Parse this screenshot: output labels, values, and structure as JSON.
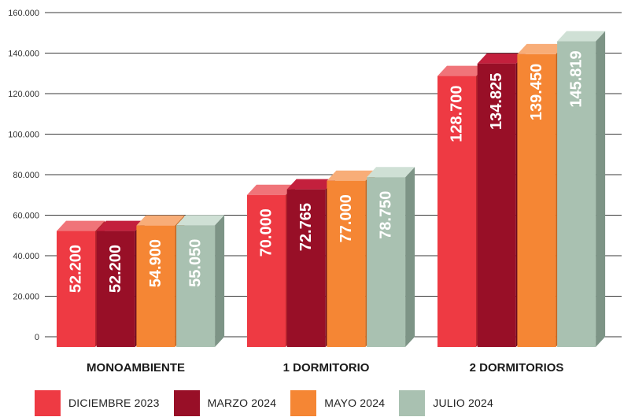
{
  "chart_data": {
    "type": "bar",
    "categories": [
      "MONOAMBIENTE",
      "1 DORMITORIO",
      "2 DORMITORIOS"
    ],
    "series": [
      {
        "name": "DICIEMBRE 2023",
        "values": [
          52200,
          70000,
          128700
        ],
        "labels": [
          "52.200",
          "70.000",
          "128.700"
        ]
      },
      {
        "name": "MARZO 2024",
        "values": [
          52200,
          72765,
          134825
        ],
        "labels": [
          "52.200",
          "72.765",
          "134.825"
        ]
      },
      {
        "name": "MAYO 2024",
        "values": [
          54900,
          77000,
          139450
        ],
        "labels": [
          "54.900",
          "77.000",
          "139.450"
        ]
      },
      {
        "name": "JULIO 2024",
        "values": [
          55050,
          78750,
          145819
        ],
        "labels": [
          "55.050",
          "78.750",
          "145.819"
        ]
      }
    ],
    "yticks": [
      "0",
      "20.000",
      "40.000",
      "60.000",
      "80.000",
      "100.000",
      "120.000",
      "140.000",
      "160.000"
    ],
    "ylim": [
      0,
      160000
    ],
    "grid": true,
    "legend_position": "bottom",
    "colors": {
      "front": [
        "#ee3a43",
        "#980f27",
        "#f58634",
        "#a9c1b1"
      ],
      "top": [
        "#f07479",
        "#c3203d",
        "#f8ad78",
        "#cfe0d5"
      ],
      "side": [
        "#b9262e",
        "#6b0a1c",
        "#c4641e",
        "#7d9486"
      ]
    }
  }
}
